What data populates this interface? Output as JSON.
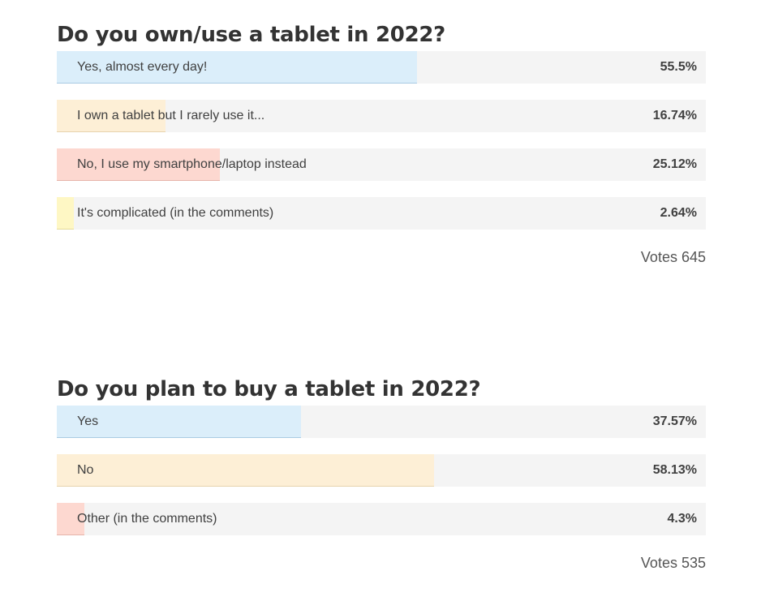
{
  "polls": [
    {
      "title": "Do you own/use a tablet in 2022?",
      "options": [
        {
          "label": "Yes, almost every day!",
          "percent_text": "55.5%",
          "fraction": 0.555,
          "fill": "#dbeefa",
          "border": "#a9cbe3"
        },
        {
          "label": "I own a tablet but I rarely use it...",
          "percent_text": "16.74%",
          "fraction": 0.1674,
          "fill": "#fdefd6",
          "border": "#e7d3ad"
        },
        {
          "label": "No, I use my smartphone/laptop instead",
          "percent_text": "25.12%",
          "fraction": 0.2512,
          "fill": "#fdd8d0",
          "border": "#e6b5aa"
        },
        {
          "label": "It's complicated (in the comments)",
          "percent_text": "2.64%",
          "fraction": 0.0264,
          "fill": "#fef7c4",
          "border": "#e4da9a"
        }
      ],
      "votes_text": "Votes 645"
    },
    {
      "title": "Do you plan to buy a tablet in 2022?",
      "options": [
        {
          "label": "Yes",
          "percent_text": "37.57%",
          "fraction": 0.3757,
          "fill": "#dbeefa",
          "border": "#a9cbe3"
        },
        {
          "label": "No",
          "percent_text": "58.13%",
          "fraction": 0.5813,
          "fill": "#fdefd6",
          "border": "#e7d3ad"
        },
        {
          "label": "Other (in the comments)",
          "percent_text": "4.3%",
          "fraction": 0.043,
          "fill": "#fdd8d0",
          "border": "#e6b5aa"
        }
      ],
      "votes_text": "Votes 535"
    }
  ]
}
